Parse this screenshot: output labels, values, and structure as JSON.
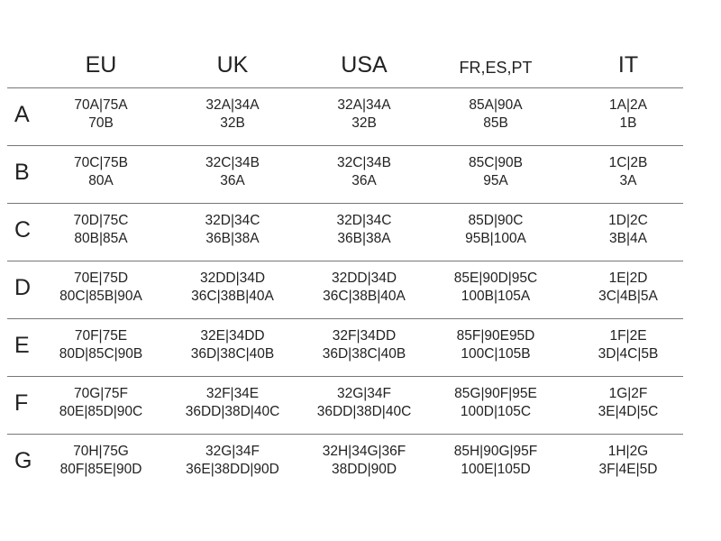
{
  "headers": [
    "EU",
    "UK",
    "USA",
    "FR,ES,PT",
    "IT"
  ],
  "rows": [
    {
      "label": "A",
      "cells": [
        [
          "70A|75A",
          "70B"
        ],
        [
          "32A|34A",
          "32B"
        ],
        [
          "32A|34A",
          "32B"
        ],
        [
          "85A|90A",
          "85B"
        ],
        [
          "1A|2A",
          "1B"
        ]
      ]
    },
    {
      "label": "B",
      "cells": [
        [
          "70C|75B",
          "80A"
        ],
        [
          "32C|34B",
          "36A"
        ],
        [
          "32C|34B",
          "36A"
        ],
        [
          "85C|90B",
          "95A"
        ],
        [
          "1C|2B",
          "3A"
        ]
      ]
    },
    {
      "label": "C",
      "cells": [
        [
          "70D|75C",
          "80B|85A"
        ],
        [
          "32D|34C",
          "36B|38A"
        ],
        [
          "32D|34C",
          "36B|38A"
        ],
        [
          "85D|90C",
          "95B|100A"
        ],
        [
          "1D|2C",
          "3B|4A"
        ]
      ]
    },
    {
      "label": "D",
      "cells": [
        [
          "70E|75D",
          "80C|85B|90A"
        ],
        [
          "32DD|34D",
          "36C|38B|40A"
        ],
        [
          "32DD|34D",
          "36C|38B|40A"
        ],
        [
          "85E|90D|95C",
          "100B|105A"
        ],
        [
          "1E|2D",
          "3C|4B|5A"
        ]
      ]
    },
    {
      "label": "E",
      "cells": [
        [
          "70F|75E",
          "80D|85C|90B"
        ],
        [
          "32E|34DD",
          "36D|38C|40B"
        ],
        [
          "32F|34DD",
          "36D|38C|40B"
        ],
        [
          "85F|90E95D",
          "100C|105B"
        ],
        [
          "1F|2E",
          "3D|4C|5B"
        ]
      ]
    },
    {
      "label": "F",
      "cells": [
        [
          "70G|75F",
          "80E|85D|90C"
        ],
        [
          "32F|34E",
          "36DD|38D|40C"
        ],
        [
          "32G|34F",
          "36DD|38D|40C"
        ],
        [
          "85G|90F|95E",
          "100D|105C"
        ],
        [
          "1G|2F",
          "3E|4D|5C"
        ]
      ]
    },
    {
      "label": "G",
      "cells": [
        [
          "70H|75G",
          "80F|85E|90D"
        ],
        [
          "32G|34F",
          "36E|38DD|90D"
        ],
        [
          "32H|34G|36F",
          "38DD|90D"
        ],
        [
          "85H|90G|95F",
          "100E|105D"
        ],
        [
          "1H|2G",
          "3F|4E|5D"
        ]
      ]
    }
  ]
}
